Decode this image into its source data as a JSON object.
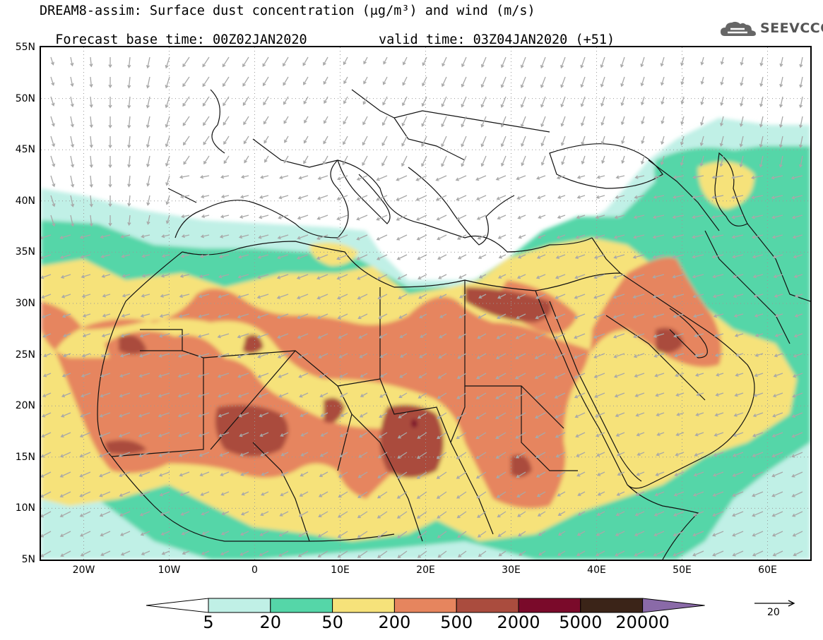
{
  "title": {
    "line1": "DREAM8-assim: Surface dust concentration (μg/m³) and wind (m/s)",
    "base_time": "Forecast base time: 00Z02JAN2020",
    "valid_time": "valid time: 03Z04JAN2020 (+51)"
  },
  "logo": {
    "text": "SEEVCCC",
    "icon": "cloud-logo-icon"
  },
  "map": {
    "lon_range": [
      -25,
      65
    ],
    "lat_range": [
      5,
      55
    ],
    "lat_labels": [
      "55N",
      "50N",
      "45N",
      "40N",
      "35N",
      "30N",
      "25N",
      "20N",
      "15N",
      "10N",
      "5N"
    ],
    "lon_labels": [
      "20W",
      "10W",
      "0",
      "10E",
      "20E",
      "30E",
      "40E",
      "50E",
      "60E"
    ],
    "gridlines": true
  },
  "colorbar": {
    "labels": [
      "5",
      "20",
      "50",
      "200",
      "500",
      "2000",
      "5000",
      "20000"
    ],
    "colors": [
      "#ffffff",
      "#c0f0e6",
      "#55d6a8",
      "#f6e27a",
      "#e6855e",
      "#aa4c3e",
      "#7a0a2a",
      "#3b2418",
      "#8a6aa8"
    ]
  },
  "wind_reference": {
    "label": "20"
  }
}
